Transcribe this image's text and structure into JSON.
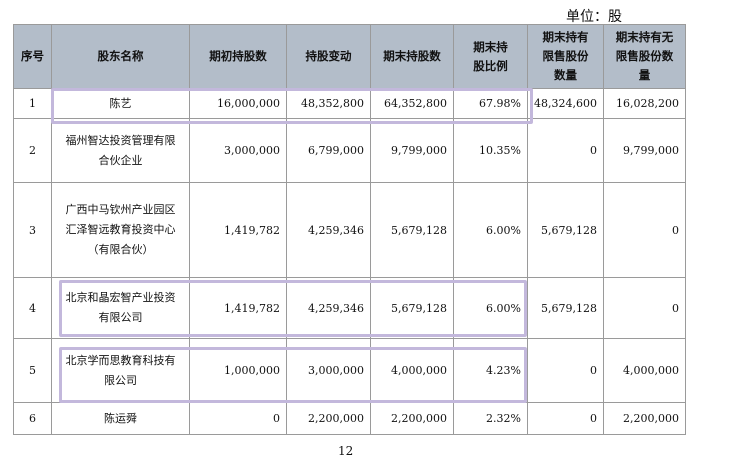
{
  "unit_label": "单位：股",
  "headers": {
    "seq": "序号",
    "name": "股东名称",
    "initial": "期初持股数",
    "change": "持股变动",
    "end": "期末持股数",
    "ratio_l1": "期末持",
    "ratio_l2": "股比例",
    "restricted_l1": "期末持有",
    "restricted_l2": "限售股份",
    "restricted_l3": "数量",
    "unrestricted_l1": "期末持有无",
    "unrestricted_l2": "限售股份数",
    "unrestricted_l3": "量"
  },
  "rows": [
    {
      "seq": "1",
      "name_lines": [
        "陈艺"
      ],
      "initial": "16,000,000",
      "change": "48,352,800",
      "end": "64,352,800",
      "ratio": "67.98%",
      "restricted": "48,324,600",
      "unrestricted": "16,028,200"
    },
    {
      "seq": "2",
      "name_lines": [
        "福州智达投资管理有限",
        "合伙企业"
      ],
      "initial": "3,000,000",
      "change": "6,799,000",
      "end": "9,799,000",
      "ratio": "10.35%",
      "restricted": "0",
      "unrestricted": "9,799,000"
    },
    {
      "seq": "3",
      "name_lines": [
        "广西中马钦州产业园区",
        "汇泽智远教育投资中心",
        "（有限合伙）"
      ],
      "initial": "1,419,782",
      "change": "4,259,346",
      "end": "5,679,128",
      "ratio": "6.00%",
      "restricted": "5,679,128",
      "unrestricted": "0"
    },
    {
      "seq": "4",
      "name_lines": [
        "北京和晶宏智产业投资",
        "有限公司"
      ],
      "initial": "1,419,782",
      "change": "4,259,346",
      "end": "5,679,128",
      "ratio": "6.00%",
      "restricted": "5,679,128",
      "unrestricted": "0"
    },
    {
      "seq": "5",
      "name_lines": [
        "北京学而思教育科技有",
        "限公司"
      ],
      "initial": "1,000,000",
      "change": "3,000,000",
      "end": "4,000,000",
      "ratio": "4.23%",
      "restricted": "0",
      "unrestricted": "4,000,000"
    },
    {
      "seq": "6",
      "name_lines": [
        "陈运舜"
      ],
      "initial": "0",
      "change": "2,200,000",
      "end": "2,200,000",
      "ratio": "2.32%",
      "restricted": "0",
      "unrestricted": "2,200,000"
    }
  ],
  "page_number": "12"
}
